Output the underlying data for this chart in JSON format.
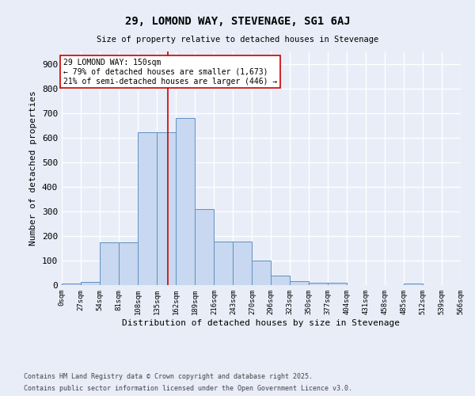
{
  "title_line1": "29, LOMOND WAY, STEVENAGE, SG1 6AJ",
  "title_line2": "Size of property relative to detached houses in Stevenage",
  "xlabel": "Distribution of detached houses by size in Stevenage",
  "ylabel": "Number of detached properties",
  "bar_color": "#c8d8f0",
  "bar_edge_color": "#6090c0",
  "background_color": "#e8edf8",
  "grid_color": "#ffffff",
  "bin_start_values": [
    0,
    27,
    54,
    81,
    108,
    135,
    162,
    189,
    216,
    243,
    270,
    296,
    323,
    350,
    377,
    404,
    431,
    458,
    485,
    512,
    539
  ],
  "values": [
    7,
    12,
    175,
    175,
    620,
    620,
    678,
    310,
    178,
    178,
    100,
    38,
    15,
    10,
    10,
    0,
    0,
    0,
    5,
    0,
    0
  ],
  "property_size": 150,
  "bin_width": 27,
  "annotation_text": "29 LOMOND WAY: 150sqm\n← 79% of detached houses are smaller (1,673)\n21% of semi-detached houses are larger (446) →",
  "annotation_box_color": "#ffffff",
  "annotation_box_edge": "#cc0000",
  "red_line_x": 150,
  "ylim": [
    0,
    950
  ],
  "yticks": [
    0,
    100,
    200,
    300,
    400,
    500,
    600,
    700,
    800,
    900
  ],
  "footnote1": "Contains HM Land Registry data © Crown copyright and database right 2025.",
  "footnote2": "Contains public sector information licensed under the Open Government Licence v3.0."
}
